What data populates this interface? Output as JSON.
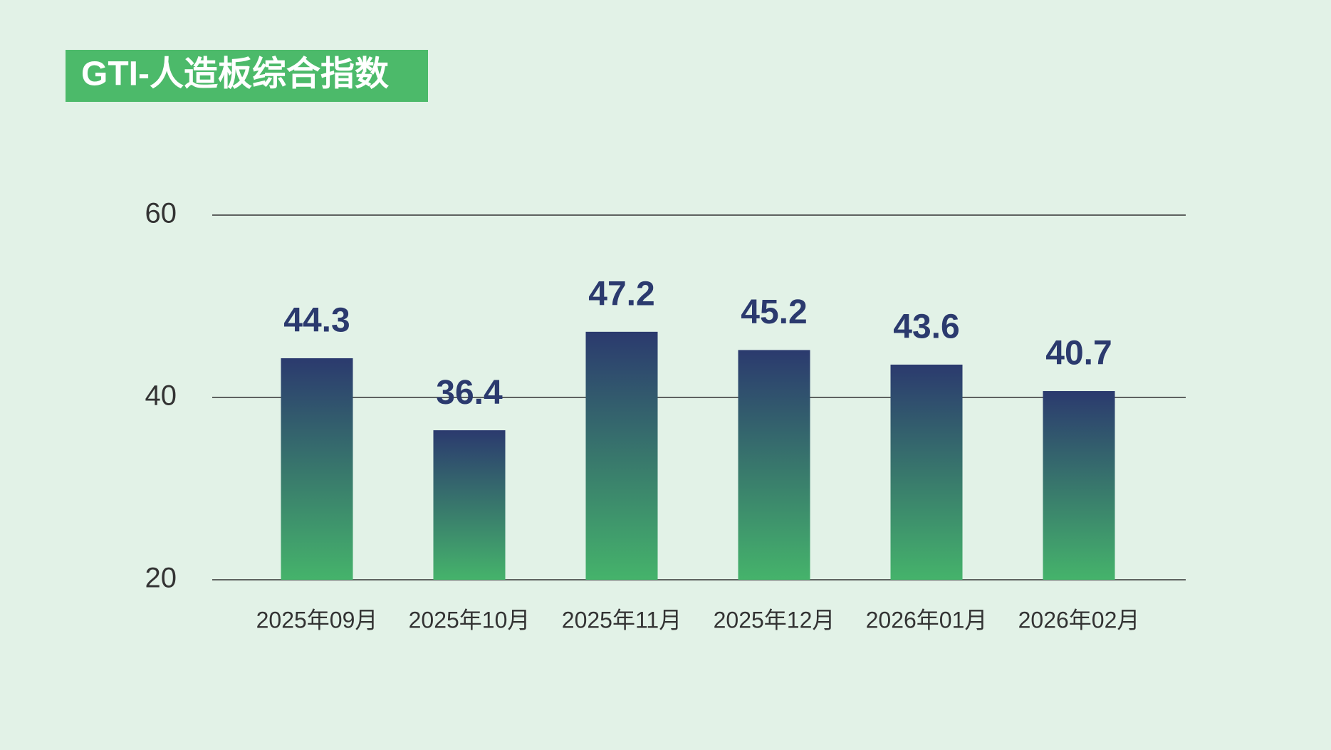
{
  "chart_data": {
    "type": "bar",
    "title": "GTI-人造板综合指数",
    "categories": [
      "2025年09月",
      "2025年10月",
      "2025年11月",
      "2025年12月",
      "2026年01月",
      "2026年02月"
    ],
    "values": [
      44.3,
      36.4,
      47.2,
      45.2,
      43.6,
      40.7
    ],
    "color": [
      "#2b3a6e",
      "#45b36b"
    ],
    "ylim": [
      20,
      60
    ],
    "yticks": [
      20,
      40,
      60
    ],
    "grid": true
  }
}
